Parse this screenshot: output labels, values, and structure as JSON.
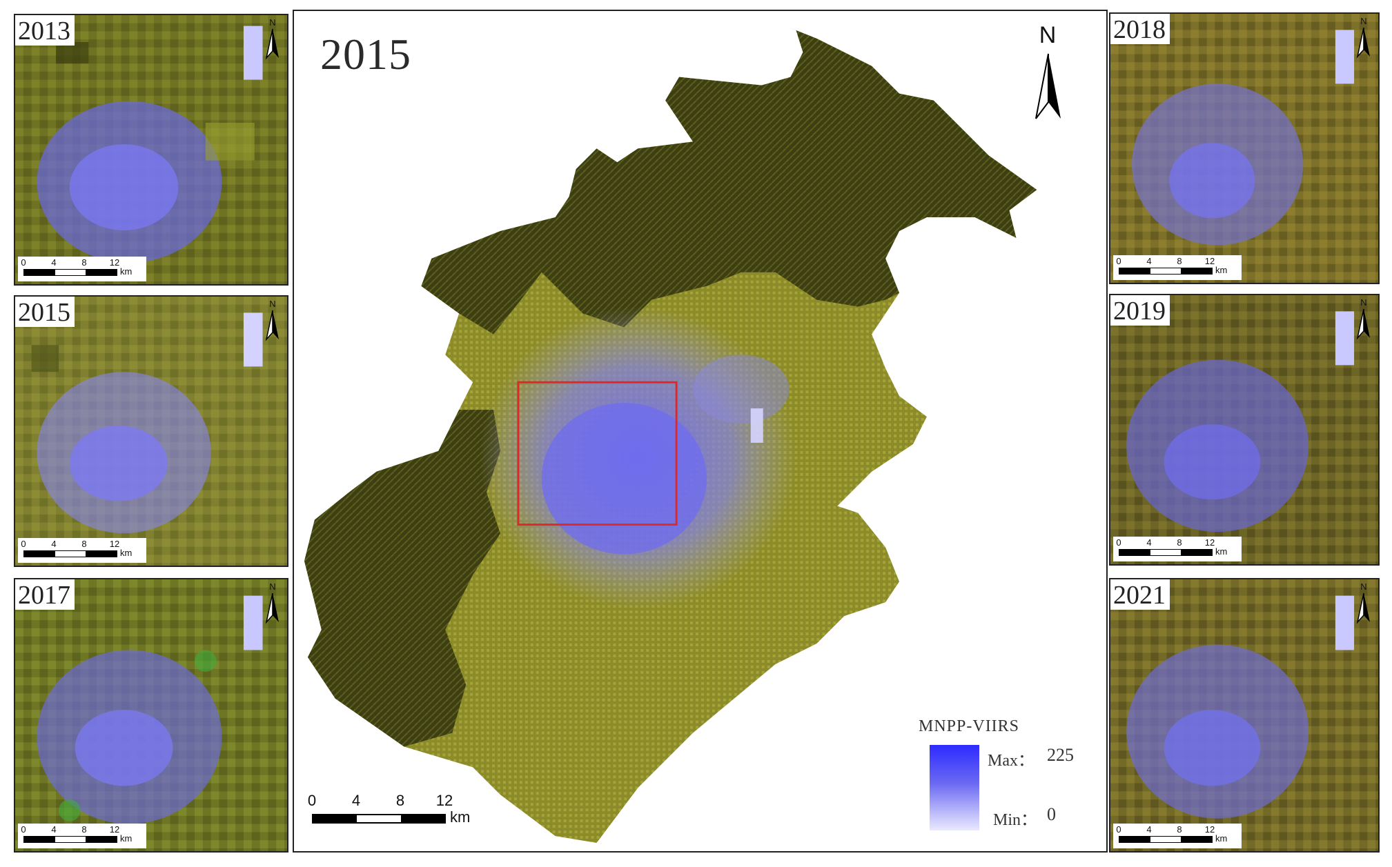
{
  "colors": {
    "mountain": "#3d3f12",
    "plain": "#8c8b2a",
    "urban": "#6f6cf0",
    "highlight_box": "#e02828"
  },
  "side_panels": [
    {
      "year": "2013",
      "north": "N",
      "scale_ticks": [
        "0",
        "4",
        "8",
        "12"
      ],
      "scale_unit": "km"
    },
    {
      "year": "2015",
      "north": "N",
      "scale_ticks": [
        "0",
        "4",
        "8",
        "12"
      ],
      "scale_unit": "km"
    },
    {
      "year": "2017",
      "north": "N",
      "scale_ticks": [
        "0",
        "4",
        "8",
        "12"
      ],
      "scale_unit": "km"
    },
    {
      "year": "2018",
      "north": "N",
      "scale_ticks": [
        "0",
        "4",
        "8",
        "12"
      ],
      "scale_unit": "km"
    },
    {
      "year": "2019",
      "north": "N",
      "scale_ticks": [
        "0",
        "4",
        "8",
        "12"
      ],
      "scale_unit": "km"
    },
    {
      "year": "2021",
      "north": "N",
      "scale_ticks": [
        "0",
        "4",
        "8",
        "12"
      ],
      "scale_unit": "km"
    }
  ],
  "main": {
    "title": "2015",
    "north": "N",
    "scale_ticks": [
      "0",
      "4",
      "8",
      "12"
    ],
    "scale_unit": "km",
    "legend": {
      "title": "MNPP-VIIRS",
      "max_label": "Max：",
      "max_value": "225",
      "min_label": "Min：",
      "min_value": "0"
    }
  }
}
